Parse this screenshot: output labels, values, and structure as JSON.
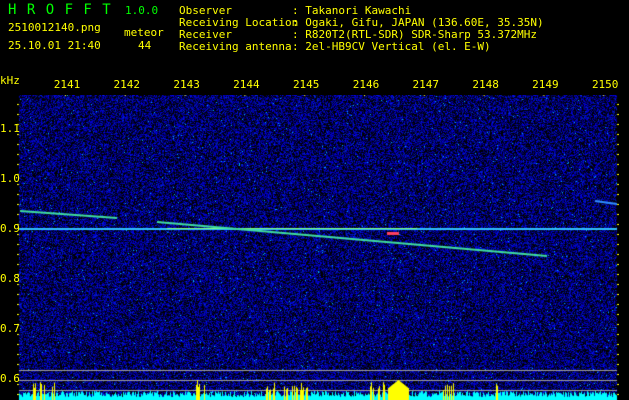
{
  "app": {
    "name": "H R O F F T",
    "version": "1.0.0"
  },
  "file": {
    "name": "2510012140.png",
    "datetime": "25.10.01 21:40"
  },
  "detection": {
    "label": "meteor",
    "count": "44"
  },
  "station": [
    {
      "key": "Observer",
      "value": ": Takanori Kawachi"
    },
    {
      "key": "Receiving Location",
      "value": ": Ogaki, Gifu, JAPAN (136.60E, 35.35N)"
    },
    {
      "key": "Receiver",
      "value": ": R820T2(RTL-SDR) SDR-Sharp 53.372MHz"
    },
    {
      "key": "Receiving antenna",
      "value": ": 2el-HB9CV Vertical (el. E-W)"
    }
  ],
  "axes": {
    "y_unit": "kHz",
    "y_ticks": [
      "1.1",
      "1.0",
      "0.9",
      "0.8",
      "0.7",
      "0.6"
    ],
    "x_ticks": [
      "2141",
      "2142",
      "2143",
      "2144",
      "2145",
      "2146",
      "2147",
      "2148",
      "2149",
      "2150"
    ]
  },
  "colors": {
    "text": "#ffff00",
    "title": "#00ff00",
    "background": "#000000",
    "noise": "#0000aa",
    "spectrum": "#00ffff"
  }
}
